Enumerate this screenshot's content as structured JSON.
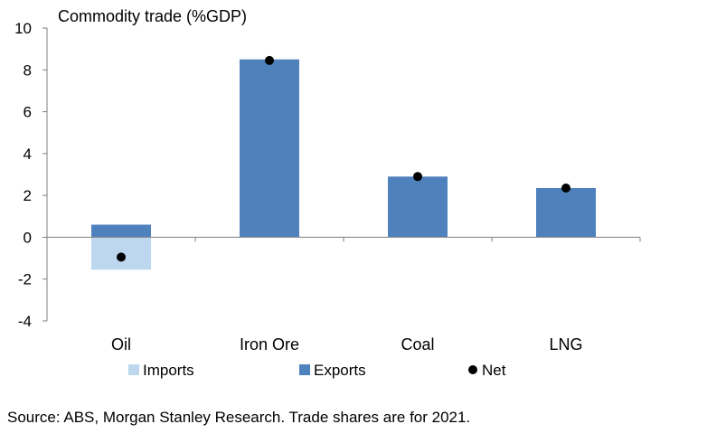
{
  "chart_data": {
    "type": "bar",
    "title": "Commodity trade (%GDP)",
    "xlabel": "",
    "ylabel": "",
    "categories": [
      "Oil",
      "Iron Ore",
      "Coal",
      "LNG"
    ],
    "ylim": [
      -4,
      10
    ],
    "yticks": [
      -4,
      -2,
      0,
      2,
      4,
      6,
      8,
      10
    ],
    "ytick_labels": [
      "-4",
      "-2",
      "0",
      "2",
      "4",
      "6",
      "8",
      "10"
    ],
    "series": [
      {
        "name": "Imports",
        "kind": "bar",
        "color": "#BDD7EE",
        "values": [
          -1.55,
          0,
          0,
          0
        ]
      },
      {
        "name": "Exports",
        "kind": "bar",
        "color": "#4F81BD",
        "values": [
          0.6,
          8.5,
          2.9,
          2.35
        ]
      },
      {
        "name": "Net",
        "kind": "point",
        "color": "#000000",
        "values": [
          -0.95,
          8.45,
          2.9,
          2.35
        ]
      }
    ],
    "legend": {
      "position": "bottom"
    },
    "grid": false
  },
  "footer": {
    "source": "Source: ABS, Morgan Stanley Research. Trade shares are for 2021."
  }
}
